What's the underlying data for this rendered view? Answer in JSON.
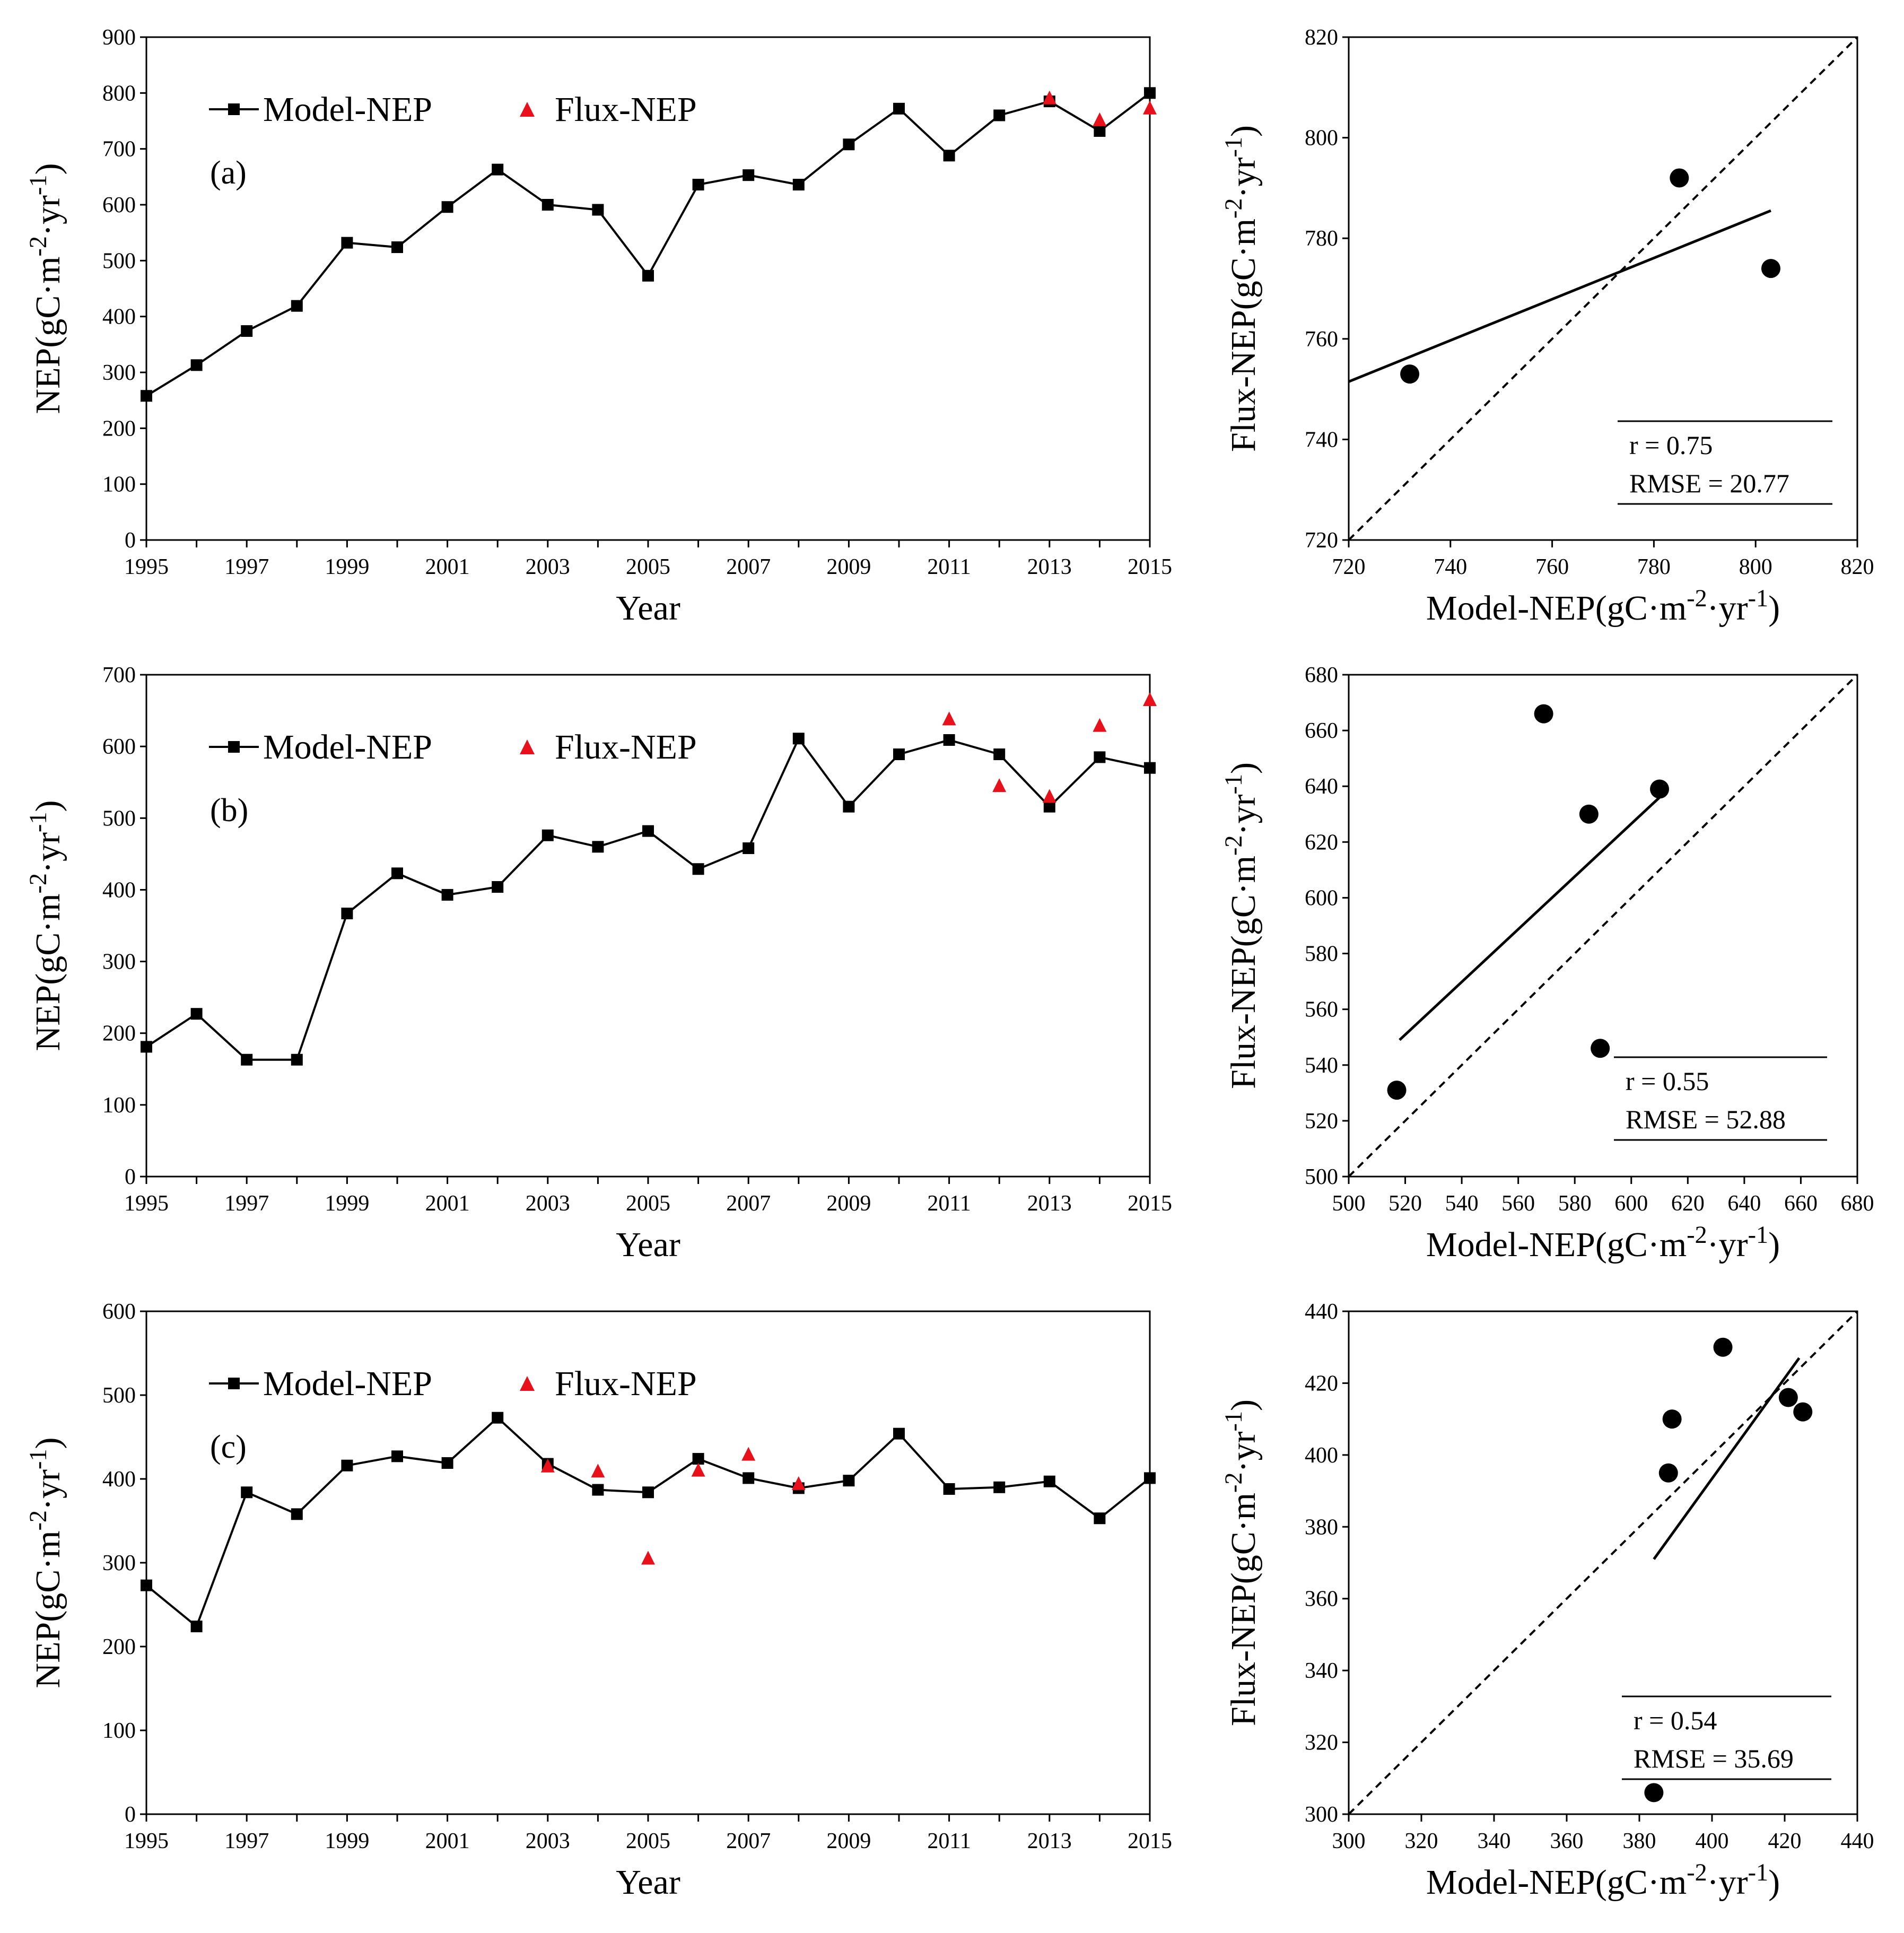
{
  "chart_data": [
    {
      "type": "line",
      "panel_label": "(a)",
      "xlabel": "Year",
      "ylabel": "NEP(gC·m-2·yr-1)",
      "ylabel_parts": {
        "main": "NEP(gC·m",
        "sup1": "-2",
        "mid": "·yr",
        "sup2": "-1",
        "end": ")"
      },
      "xlim": [
        1995,
        2015
      ],
      "ylim": [
        0,
        900
      ],
      "xticks": [
        1995,
        1997,
        1999,
        2001,
        2003,
        2005,
        2007,
        2009,
        2011,
        2013,
        2015
      ],
      "yticks": [
        0,
        100,
        200,
        300,
        400,
        500,
        600,
        700,
        800,
        900
      ],
      "legend": {
        "position": "top-left",
        "entries": [
          "Model-NEP",
          "Flux-NEP"
        ]
      },
      "series": [
        {
          "name": "Model-NEP",
          "marker": "square",
          "color": "#000000",
          "x": [
            1995,
            1996,
            1997,
            1998,
            1999,
            2000,
            2001,
            2002,
            2003,
            2004,
            2005,
            2006,
            2007,
            2008,
            2009,
            2010,
            2011,
            2012,
            2013,
            2014,
            2015
          ],
          "y": [
            258,
            313,
            374,
            419,
            532,
            524,
            596,
            663,
            600,
            591,
            473,
            636,
            653,
            636,
            708,
            772,
            688,
            760,
            785,
            732,
            800
          ]
        },
        {
          "name": "Flux-NEP",
          "marker": "triangle",
          "color": "#e8101a",
          "x": [
            2013,
            2014,
            2015
          ],
          "y": [
            792,
            753,
            774
          ]
        }
      ]
    },
    {
      "type": "scatter",
      "xlabel": "Model-NEP(gC·m-2·yr-1)",
      "ylabel": "Flux-NEP(gC·m-2·yr-1)",
      "xlabel_parts": {
        "main": "Model-NEP(gC·m",
        "sup1": "-2",
        "mid": "·yr",
        "sup2": "-1",
        "end": ")"
      },
      "ylabel_parts": {
        "main": "Flux-NEP(gC·m",
        "sup1": "-2",
        "mid": "·yr",
        "sup2": "-1",
        "end": ")"
      },
      "xlim": [
        720,
        820
      ],
      "ylim": [
        720,
        820
      ],
      "xticks": [
        720,
        740,
        760,
        780,
        800,
        820
      ],
      "yticks": [
        720,
        740,
        760,
        780,
        800,
        820
      ],
      "points": {
        "x": [
          732,
          785,
          803
        ],
        "y": [
          753,
          792,
          774
        ]
      },
      "fit_line": {
        "x": [
          720,
          803
        ],
        "y": [
          751.5,
          785.5
        ]
      },
      "one_to_one": true,
      "stats": {
        "r": "r = 0.75",
        "rmse": "RMSE = 20.77"
      }
    },
    {
      "type": "line",
      "panel_label": "(b)",
      "xlabel": "Year",
      "ylabel": "NEP(gC·m-2·yr-1)",
      "ylabel_parts": {
        "main": "NEP(gC·m",
        "sup1": "-2",
        "mid": "·yr",
        "sup2": "-1",
        "end": ")"
      },
      "xlim": [
        1995,
        2015
      ],
      "ylim": [
        0,
        700
      ],
      "xticks": [
        1995,
        1997,
        1999,
        2001,
        2003,
        2005,
        2007,
        2009,
        2011,
        2013,
        2015
      ],
      "yticks": [
        0,
        100,
        200,
        300,
        400,
        500,
        600,
        700
      ],
      "legend": {
        "position": "top-left",
        "entries": [
          "Model-NEP",
          "Flux-NEP"
        ]
      },
      "series": [
        {
          "name": "Model-NEP",
          "marker": "square",
          "color": "#000000",
          "x": [
            1995,
            1996,
            1997,
            1998,
            1999,
            2000,
            2001,
            2002,
            2003,
            2004,
            2005,
            2006,
            2007,
            2008,
            2009,
            2010,
            2011,
            2012,
            2013,
            2014,
            2015
          ],
          "y": [
            181,
            227,
            163,
            163,
            367,
            423,
            393,
            404,
            476,
            460,
            482,
            429,
            458,
            611,
            516,
            589,
            609,
            589,
            516,
            585,
            570
          ]
        },
        {
          "name": "Flux-NEP",
          "marker": "triangle",
          "color": "#e8101a",
          "x": [
            2011,
            2012,
            2013,
            2014,
            2015
          ],
          "y": [
            639,
            546,
            531,
            630,
            666
          ]
        }
      ]
    },
    {
      "type": "scatter",
      "xlabel": "Model-NEP(gC·m-2·yr-1)",
      "ylabel": "Flux-NEP(gC·m-2·yr-1)",
      "xlabel_parts": {
        "main": "Model-NEP(gC·m",
        "sup1": "-2",
        "mid": "·yr",
        "sup2": "-1",
        "end": ")"
      },
      "ylabel_parts": {
        "main": "Flux-NEP(gC·m",
        "sup1": "-2",
        "mid": "·yr",
        "sup2": "-1",
        "end": ")"
      },
      "xlim": [
        500,
        680
      ],
      "ylim": [
        500,
        680
      ],
      "xticks": [
        500,
        520,
        540,
        560,
        580,
        600,
        620,
        640,
        660,
        680
      ],
      "yticks": [
        500,
        520,
        540,
        560,
        580,
        600,
        620,
        640,
        660,
        680
      ],
      "points": {
        "x": [
          517,
          569,
          585,
          589,
          610
        ],
        "y": [
          531,
          666,
          630,
          546,
          639
        ]
      },
      "fit_line": {
        "x": [
          518,
          610
        ],
        "y": [
          549,
          636
        ]
      },
      "one_to_one": true,
      "stats": {
        "r": "r = 0.55",
        "rmse": "RMSE = 52.88"
      }
    },
    {
      "type": "line",
      "panel_label": "(c)",
      "xlabel": "Year",
      "ylabel": "NEP(gC·m-2·yr-1)",
      "ylabel_parts": {
        "main": "NEP(gC·m",
        "sup1": "-2",
        "mid": "·yr",
        "sup2": "-1",
        "end": ")"
      },
      "xlim": [
        1995,
        2015
      ],
      "ylim": [
        0,
        600
      ],
      "xticks": [
        1995,
        1997,
        1999,
        2001,
        2003,
        2005,
        2007,
        2009,
        2011,
        2013,
        2015
      ],
      "yticks": [
        0,
        100,
        200,
        300,
        400,
        500,
        600
      ],
      "legend": {
        "position": "top-left",
        "entries": [
          "Model-NEP",
          "Flux-NEP"
        ]
      },
      "series": [
        {
          "name": "Model-NEP",
          "marker": "square",
          "color": "#000000",
          "x": [
            1995,
            1996,
            1997,
            1998,
            1999,
            2000,
            2001,
            2002,
            2003,
            2004,
            2005,
            2006,
            2007,
            2008,
            2009,
            2010,
            2011,
            2012,
            2013,
            2014,
            2015
          ],
          "y": [
            273,
            224,
            384,
            358,
            416,
            427,
            419,
            473,
            418,
            387,
            384,
            424,
            401,
            389,
            398,
            454,
            388,
            390,
            397,
            353,
            401
          ]
        },
        {
          "name": "Flux-NEP",
          "marker": "triangle",
          "color": "#e8101a",
          "x": [
            2003,
            2004,
            2005,
            2006,
            2007,
            2008
          ],
          "y": [
            416,
            410,
            306,
            411,
            430,
            395
          ]
        }
      ]
    },
    {
      "type": "scatter",
      "xlabel": "Model-NEP(gC·m-2·yr-1)",
      "ylabel": "Flux-NEP(gC·m-2·yr-1)",
      "xlabel_parts": {
        "main": "Model-NEP(gC·m",
        "sup1": "-2",
        "mid": "·yr",
        "sup2": "-1",
        "end": ")"
      },
      "ylabel_parts": {
        "main": "Flux-NEP(gC·m",
        "sup1": "-2",
        "mid": "·yr",
        "sup2": "-1",
        "end": ")"
      },
      "xlim": [
        300,
        440
      ],
      "ylim": [
        300,
        440
      ],
      "xticks": [
        300,
        320,
        340,
        360,
        380,
        400,
        420,
        440
      ],
      "yticks": [
        300,
        320,
        340,
        360,
        380,
        400,
        420,
        440
      ],
      "points": {
        "x": [
          384,
          388,
          389,
          403,
          421,
          425
        ],
        "y": [
          306,
          395,
          410,
          430,
          416,
          412
        ]
      },
      "fit_line": {
        "x": [
          384,
          424
        ],
        "y": [
          371,
          427
        ]
      },
      "one_to_one": true,
      "stats": {
        "r": "r = 0.54",
        "rmse": "RMSE = 35.69"
      }
    }
  ]
}
